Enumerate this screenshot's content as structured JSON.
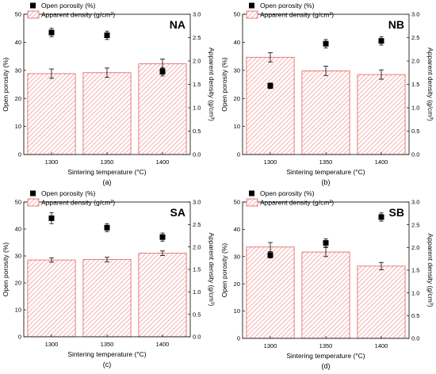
{
  "figure": {
    "legend_entries": [
      "Open porosity (%)",
      "Apparent density (g/cm³)"
    ],
    "colors": {
      "bar_hatch": "#f08080",
      "bar_border": "#e06060",
      "marker": "#000000",
      "axis": "#000000"
    }
  },
  "chart_data": [
    {
      "type": "bar",
      "panel_label": "NA",
      "caption": "(a)",
      "categories": [
        "1300",
        "1350",
        "1400"
      ],
      "xlabel": "Sintering temperature (°C)",
      "ylabel_left": "Open porosity (%)",
      "ylabel_right": "Apparent density (g/cm³)",
      "ylim_left": [
        0,
        50
      ],
      "ylim_right": [
        0,
        3.0
      ],
      "yticks_left": [
        0,
        10,
        20,
        30,
        40,
        50
      ],
      "yticks_right": [
        "0.0",
        "0.5",
        "1.0",
        "1.5",
        "2.0",
        "2.5",
        "3.0"
      ],
      "series": [
        {
          "name": "Apparent density (g/cm³)",
          "axis": "right",
          "kind": "bar",
          "values": [
            1.73,
            1.75,
            1.94
          ],
          "errors": [
            0.1,
            0.1,
            0.1
          ]
        },
        {
          "name": "Open porosity (%)",
          "axis": "left",
          "kind": "scatter",
          "values": [
            43.5,
            42.5,
            29.5
          ],
          "errors": [
            1.5,
            1.5,
            1.5
          ]
        }
      ],
      "legend_placement": "top-left"
    },
    {
      "type": "bar",
      "panel_label": "NB",
      "caption": "(b)",
      "categories": [
        "1300",
        "1350",
        "1400"
      ],
      "xlabel": "Sintering temperature (°C)",
      "ylabel_left": "Open porosity (%)",
      "ylabel_right": "Apparent density (g/cm³)",
      "ylim_left": [
        0,
        50
      ],
      "ylim_right": [
        0,
        3.0
      ],
      "yticks_left": [
        0,
        10,
        20,
        30,
        40,
        50
      ],
      "yticks_right": [
        "0.0",
        "0.5",
        "1.0",
        "1.5",
        "2.0",
        "2.5",
        "3.0"
      ],
      "series": [
        {
          "name": "Apparent density (g/cm³)",
          "axis": "right",
          "kind": "bar",
          "values": [
            2.08,
            1.79,
            1.71
          ],
          "errors": [
            0.1,
            0.1,
            0.1
          ]
        },
        {
          "name": "Open porosity (%)",
          "axis": "left",
          "kind": "scatter",
          "values": [
            24.5,
            39.5,
            40.5
          ],
          "errors": [
            1.0,
            1.5,
            1.5
          ]
        }
      ],
      "legend_placement": "top-left"
    },
    {
      "type": "bar",
      "panel_label": "SA",
      "caption": "(c)",
      "categories": [
        "1300",
        "1350",
        "1400"
      ],
      "xlabel": "Sintering temperature (°C)",
      "ylabel_left": "Open porosity (%)",
      "ylabel_right": "Apparent density (g/cm³)",
      "ylim_left": [
        0,
        50
      ],
      "ylim_right": [
        0,
        3.0
      ],
      "yticks_left": [
        0,
        10,
        20,
        30,
        40,
        50
      ],
      "yticks_right": [
        "0.0",
        "0.5",
        "1.0",
        "1.5",
        "2.0",
        "2.5",
        "3.0"
      ],
      "series": [
        {
          "name": "Apparent density (g/cm³)",
          "axis": "right",
          "kind": "bar",
          "values": [
            1.71,
            1.72,
            1.86
          ],
          "errors": [
            0.05,
            0.05,
            0.05
          ]
        },
        {
          "name": "Open porosity (%)",
          "axis": "left",
          "kind": "scatter",
          "values": [
            44.0,
            40.5,
            37.0
          ],
          "errors": [
            2.0,
            1.5,
            1.5
          ]
        }
      ],
      "legend_placement": "top-left"
    },
    {
      "type": "bar",
      "panel_label": "SB",
      "caption": "(d)",
      "categories": [
        "1300",
        "1350",
        "1400"
      ],
      "xlabel": "Sintering temperature (°C)",
      "ylabel_left": "Open porosity (%)",
      "ylabel_right": "Apparent density (g/cm³)",
      "ylim_left": [
        0,
        50
      ],
      "ylim_right": [
        0,
        3.0
      ],
      "yticks_left": [
        0,
        10,
        20,
        30,
        40,
        50
      ],
      "yticks_right": [
        "0.0",
        "0.5",
        "1.0",
        "1.5",
        "2.0",
        "2.5",
        "3.0"
      ],
      "series": [
        {
          "name": "Apparent density (g/cm³)",
          "axis": "right",
          "kind": "bar",
          "values": [
            2.01,
            1.9,
            1.59
          ],
          "errors": [
            0.1,
            0.1,
            0.08
          ]
        },
        {
          "name": "Open porosity (%)",
          "axis": "left",
          "kind": "scatter",
          "values": [
            30.5,
            35.0,
            44.5
          ],
          "errors": [
            1.0,
            1.5,
            1.5
          ]
        }
      ],
      "legend_placement": "top-left"
    }
  ]
}
